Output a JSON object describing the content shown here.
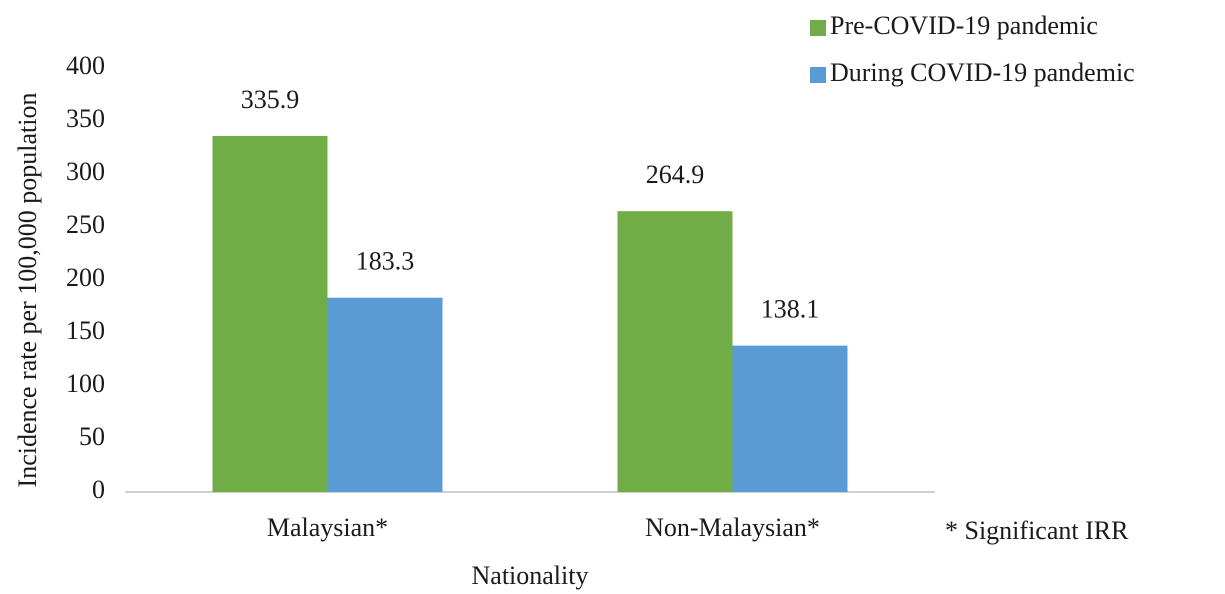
{
  "chart_data": {
    "type": "bar",
    "ylabel": "Incidence rate per 100,000 population",
    "xlabel": "Nationality",
    "annotation": "* Significant IRR",
    "categories": [
      "Malaysian*",
      "Non-Malaysian*"
    ],
    "series": [
      {
        "name": "Pre-COVID-19 pandemic",
        "color": "#70ad47",
        "values": [
          335.9,
          264.9
        ]
      },
      {
        "name": "During COVID-19 pandemic",
        "color": "#5b9bd5",
        "values": [
          183.3,
          138.1
        ]
      }
    ],
    "ylim": [
      0,
      400
    ],
    "yticks": [
      0,
      50,
      100,
      150,
      200,
      250,
      300,
      350,
      400
    ],
    "grid": false,
    "legend": "top-right"
  }
}
